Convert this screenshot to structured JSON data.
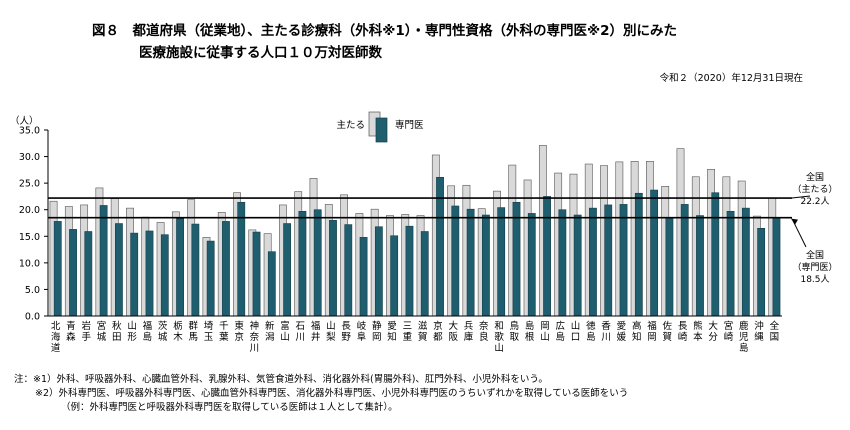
{
  "title": {
    "line1": "図８　都道府県（従業地）、主たる診療科（外科※1）・専門性資格（外科の専門医※2）別にみた",
    "line2": "医療施設に従事する人口１０万対医師数"
  },
  "as_of": "令和２（2020）年12月31日現在",
  "notes": [
    "注：※1）外科、呼吸器外科、心臓血管外科、乳腺外科、気管食道外科、消化器外科(胃腸外科)、肛門外科、小児外科をいう。",
    "※2）外科専門医、呼吸器外科専門医、心臓血管外科専門医、消化器外科専門医、小児外科専門医のうちいずれかを取得している医師をいう",
    "（例：外科専門医と呼吸器外科専門医を取得している医師は１人として集計）。"
  ],
  "chart_data": {
    "type": "bar",
    "ylabel": "（人）",
    "ylim": [
      0,
      35
    ],
    "yticks": [
      "0.0",
      "5.0",
      "10.0",
      "15.0",
      "20.0",
      "25.0",
      "30.0",
      "35.0"
    ],
    "grid": false,
    "legend_position": "top-center",
    "categories": [
      "北海道",
      "青森",
      "岩手",
      "宮城",
      "秋田",
      "山形",
      "福島",
      "茨城",
      "栃木",
      "群馬",
      "埼玉",
      "千葉",
      "東京",
      "神奈川",
      "新潟",
      "富山",
      "石川",
      "福井",
      "山梨",
      "長野",
      "岐阜",
      "静岡",
      "愛知",
      "三重",
      "滋賀",
      "京都",
      "大阪",
      "兵庫",
      "奈良",
      "和歌山",
      "鳥取",
      "島根",
      "岡山",
      "広島",
      "山口",
      "徳島",
      "香川",
      "愛媛",
      "高知",
      "福岡",
      "佐賀",
      "長崎",
      "熊本",
      "大分",
      "宮崎",
      "鹿児島",
      "沖縄",
      "全国"
    ],
    "series": [
      {
        "name": "主たる",
        "color": "#d9d9d9",
        "values": [
          21.6,
          20.6,
          20.9,
          24.1,
          22.1,
          20.3,
          18.6,
          17.6,
          19.6,
          21.9,
          14.8,
          19.5,
          23.2,
          16.2,
          15.5,
          20.9,
          23.4,
          25.9,
          21.0,
          22.8,
          19.3,
          20.1,
          18.9,
          19.1,
          18.9,
          30.3,
          24.5,
          24.6,
          20.2,
          23.5,
          28.4,
          25.6,
          32.1,
          26.9,
          26.7,
          28.6,
          28.3,
          29.0,
          29.1,
          29.1,
          24.4,
          31.5,
          26.2,
          27.6,
          26.2,
          25.4,
          18.8,
          22.2
        ]
      },
      {
        "name": "専門医",
        "color": "#1f5e6e",
        "values": [
          17.8,
          16.3,
          15.9,
          20.8,
          17.4,
          15.6,
          16.0,
          15.3,
          18.3,
          17.3,
          14.1,
          17.8,
          21.4,
          15.8,
          12.1,
          17.4,
          19.7,
          20.0,
          18.0,
          17.2,
          14.8,
          16.8,
          15.1,
          16.9,
          15.9,
          26.1,
          20.7,
          20.1,
          19.0,
          20.4,
          21.4,
          19.3,
          22.5,
          20.0,
          19.0,
          20.3,
          20.9,
          21.0,
          23.1,
          23.7,
          18.4,
          21.0,
          18.9,
          23.2,
          19.7,
          20.3,
          16.5,
          18.5
        ]
      }
    ],
    "reference_lines": [
      {
        "name": "全国（主たる）",
        "label_lines": [
          "全国",
          "（主たる）",
          "22.2人"
        ],
        "value": 22.2
      },
      {
        "name": "全国（専門医）",
        "label_lines": [
          "全国",
          "（専門医）",
          "18.5人"
        ],
        "value": 18.5
      }
    ]
  }
}
